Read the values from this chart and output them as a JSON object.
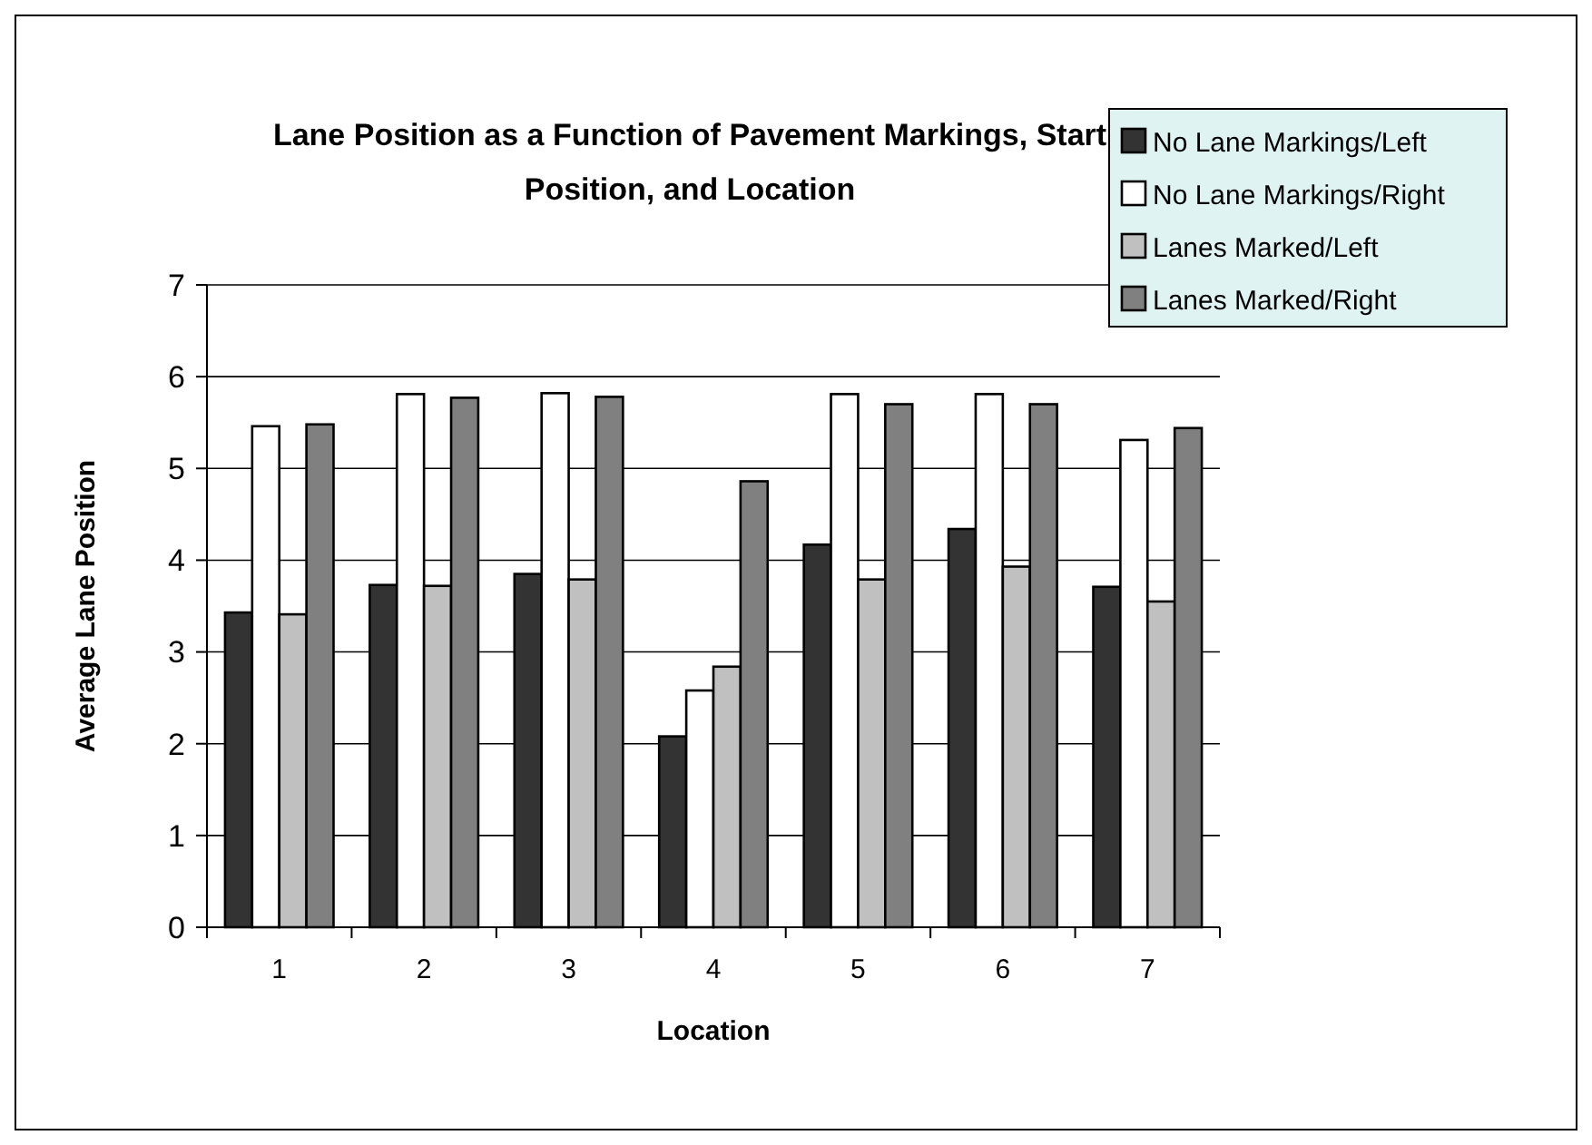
{
  "chart_data": {
    "type": "bar",
    "title": "Lane Position as a Function of Pavement Markings, Start Position, and Location",
    "xlabel": "Location",
    "ylabel": "Average Lane Position",
    "categories": [
      "1",
      "2",
      "3",
      "4",
      "5",
      "6",
      "7"
    ],
    "series": [
      {
        "name": "No Lane Markings/Left",
        "color": "#333333",
        "values": [
          3.43,
          3.73,
          3.85,
          2.08,
          4.17,
          4.34,
          3.71
        ]
      },
      {
        "name": "No Lane Markings/Right",
        "color": "#ffffff",
        "values": [
          5.46,
          5.81,
          5.82,
          2.58,
          5.81,
          5.81,
          5.31
        ]
      },
      {
        "name": "Lanes Marked/Left",
        "color": "#c0c0c0",
        "values": [
          3.41,
          3.72,
          3.79,
          2.84,
          3.79,
          3.93,
          3.55
        ]
      },
      {
        "name": "Lanes Marked/Right",
        "color": "#808080",
        "values": [
          5.48,
          5.77,
          5.78,
          4.86,
          5.7,
          5.7,
          5.44
        ]
      }
    ],
    "ylim": [
      0,
      7
    ],
    "yticks": [
      0,
      1,
      2,
      3,
      4,
      5,
      6,
      7
    ],
    "grid": "y",
    "legend": "top right"
  }
}
